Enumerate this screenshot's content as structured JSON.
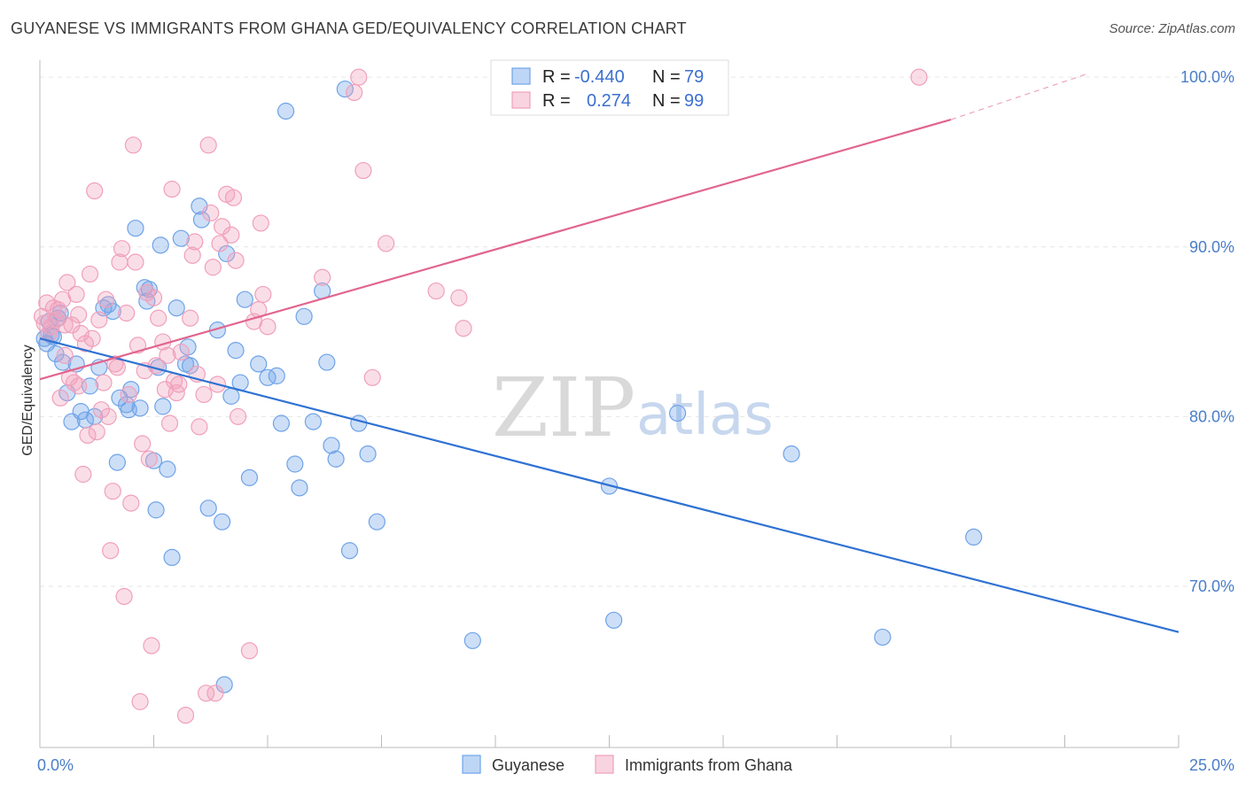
{
  "title": "GUYANESE VS IMMIGRANTS FROM GHANA GED/EQUIVALENCY CORRELATION CHART",
  "source": "Source: ZipAtlas.com",
  "watermark": {
    "zip": "ZIP",
    "atlas": "atlas"
  },
  "chart_data": {
    "type": "scatter",
    "ylabel": "GED/Equivalency",
    "xlim": [
      0,
      25
    ],
    "ylim": [
      60.5,
      101
    ],
    "x_tick_labels": {
      "min": "0.0%",
      "max": "25.0%"
    },
    "y_ticks": [
      {
        "value": 100,
        "label": "100.0%"
      },
      {
        "value": 90,
        "label": "90.0%"
      },
      {
        "value": 80,
        "label": "80.0%"
      },
      {
        "value": 70,
        "label": "70.0%"
      }
    ],
    "grid": true,
    "legend_position": "top-center",
    "legend": [
      {
        "r_label": "R = ",
        "r_value": "-0.440",
        "n_label": "N = ",
        "n_value": "79"
      },
      {
        "r_label": "R = ",
        "r_value": "0.274",
        "n_label": "N = ",
        "n_value": "99"
      }
    ],
    "series": [
      {
        "name": "Guyanese",
        "color": "#6fa3e8",
        "line_color": "#2f72d3",
        "trend": {
          "x0": 0,
          "y0": 84.6,
          "x1": 25,
          "y1": 67.3
        },
        "points": [
          [
            0.1,
            84.6
          ],
          [
            0.15,
            84.3
          ],
          [
            0.2,
            85.6
          ],
          [
            0.3,
            84.7
          ],
          [
            0.4,
            85.8
          ],
          [
            0.45,
            86.1
          ],
          [
            0.5,
            83.2
          ],
          [
            0.6,
            81.4
          ],
          [
            0.7,
            79.7
          ],
          [
            0.8,
            83.1
          ],
          [
            0.9,
            80.3
          ],
          [
            1.0,
            79.8
          ],
          [
            1.1,
            81.8
          ],
          [
            1.2,
            80.0
          ],
          [
            1.3,
            82.9
          ],
          [
            1.4,
            86.4
          ],
          [
            1.5,
            86.6
          ],
          [
            1.6,
            86.2
          ],
          [
            1.7,
            77.3
          ],
          [
            1.75,
            81.1
          ],
          [
            1.9,
            80.7
          ],
          [
            1.95,
            80.4
          ],
          [
            2.0,
            81.6
          ],
          [
            2.1,
            91.1
          ],
          [
            2.2,
            80.5
          ],
          [
            2.3,
            87.6
          ],
          [
            2.35,
            86.8
          ],
          [
            2.4,
            87.5
          ],
          [
            2.5,
            77.4
          ],
          [
            2.55,
            74.5
          ],
          [
            2.6,
            82.9
          ],
          [
            2.65,
            90.1
          ],
          [
            2.7,
            80.6
          ],
          [
            2.8,
            76.9
          ],
          [
            2.9,
            71.7
          ],
          [
            3.0,
            86.4
          ],
          [
            3.1,
            90.5
          ],
          [
            3.2,
            83.1
          ],
          [
            3.25,
            84.1
          ],
          [
            3.3,
            83.0
          ],
          [
            3.5,
            92.4
          ],
          [
            3.55,
            91.6
          ],
          [
            3.7,
            74.6
          ],
          [
            3.9,
            85.1
          ],
          [
            4.0,
            73.8
          ],
          [
            4.05,
            64.2
          ],
          [
            4.1,
            89.6
          ],
          [
            4.2,
            81.2
          ],
          [
            4.3,
            83.9
          ],
          [
            4.4,
            82.0
          ],
          [
            4.5,
            86.9
          ],
          [
            4.6,
            76.4
          ],
          [
            4.8,
            83.1
          ],
          [
            5.0,
            82.3
          ],
          [
            5.2,
            82.4
          ],
          [
            5.3,
            79.6
          ],
          [
            5.4,
            98.0
          ],
          [
            5.6,
            77.2
          ],
          [
            5.7,
            75.8
          ],
          [
            5.8,
            85.9
          ],
          [
            6.0,
            79.7
          ],
          [
            6.2,
            87.4
          ],
          [
            6.3,
            83.2
          ],
          [
            6.4,
            78.3
          ],
          [
            6.5,
            77.5
          ],
          [
            6.7,
            99.3
          ],
          [
            6.8,
            72.1
          ],
          [
            7.0,
            79.6
          ],
          [
            7.2,
            77.8
          ],
          [
            7.4,
            73.8
          ],
          [
            9.5,
            66.8
          ],
          [
            12.5,
            75.9
          ],
          [
            12.6,
            68.0
          ],
          [
            14.0,
            80.2
          ],
          [
            16.5,
            77.8
          ],
          [
            18.5,
            67.0
          ],
          [
            20.5,
            72.9
          ],
          [
            0.25,
            84.8
          ],
          [
            0.35,
            83.7
          ]
        ]
      },
      {
        "name": "Immigrants from Ghana",
        "color": "#f0a0bb",
        "line_color": "#e1658e",
        "trend": {
          "x0": 0,
          "y0": 82.2,
          "x1": 20,
          "y1": 97.5
        },
        "trend_dashed": {
          "x0": 20,
          "y0": 97.5,
          "x1": 23,
          "y1": 100.2
        },
        "points": [
          [
            0.05,
            85.9
          ],
          [
            0.1,
            85.5
          ],
          [
            0.15,
            86.7
          ],
          [
            0.2,
            84.9
          ],
          [
            0.3,
            86.4
          ],
          [
            0.35,
            85.7
          ],
          [
            0.4,
            86.3
          ],
          [
            0.45,
            81.1
          ],
          [
            0.5,
            86.9
          ],
          [
            0.55,
            83.6
          ],
          [
            0.6,
            87.9
          ],
          [
            0.65,
            82.3
          ],
          [
            0.7,
            85.4
          ],
          [
            0.8,
            87.2
          ],
          [
            0.85,
            86.0
          ],
          [
            0.9,
            84.9
          ],
          [
            0.95,
            76.6
          ],
          [
            1.0,
            84.3
          ],
          [
            1.05,
            78.9
          ],
          [
            1.1,
            88.4
          ],
          [
            1.15,
            84.6
          ],
          [
            1.2,
            93.3
          ],
          [
            1.25,
            79.1
          ],
          [
            1.3,
            85.7
          ],
          [
            1.4,
            82.0
          ],
          [
            1.45,
            86.9
          ],
          [
            1.5,
            80.0
          ],
          [
            1.55,
            72.1
          ],
          [
            1.6,
            75.6
          ],
          [
            1.65,
            83.1
          ],
          [
            1.7,
            82.9
          ],
          [
            1.75,
            89.1
          ],
          [
            1.8,
            89.9
          ],
          [
            1.85,
            69.4
          ],
          [
            1.9,
            86.1
          ],
          [
            2.0,
            74.9
          ],
          [
            2.05,
            96.0
          ],
          [
            2.1,
            89.1
          ],
          [
            2.15,
            84.2
          ],
          [
            2.2,
            63.2
          ],
          [
            2.25,
            78.4
          ],
          [
            2.3,
            82.7
          ],
          [
            2.35,
            87.3
          ],
          [
            2.4,
            77.5
          ],
          [
            2.45,
            66.5
          ],
          [
            2.5,
            87.0
          ],
          [
            2.6,
            85.8
          ],
          [
            2.7,
            84.4
          ],
          [
            2.8,
            83.6
          ],
          [
            2.85,
            79.6
          ],
          [
            2.9,
            93.4
          ],
          [
            2.95,
            82.1
          ],
          [
            3.0,
            81.4
          ],
          [
            3.1,
            83.8
          ],
          [
            3.2,
            62.4
          ],
          [
            3.3,
            85.8
          ],
          [
            3.35,
            89.5
          ],
          [
            3.4,
            90.3
          ],
          [
            3.5,
            79.4
          ],
          [
            3.6,
            81.3
          ],
          [
            3.65,
            63.7
          ],
          [
            3.7,
            96.0
          ],
          [
            3.75,
            92.0
          ],
          [
            3.8,
            88.8
          ],
          [
            3.85,
            63.7
          ],
          [
            3.9,
            81.9
          ],
          [
            3.95,
            90.2
          ],
          [
            4.0,
            91.2
          ],
          [
            4.1,
            93.1
          ],
          [
            4.2,
            90.7
          ],
          [
            4.25,
            92.9
          ],
          [
            4.3,
            89.2
          ],
          [
            4.35,
            80.0
          ],
          [
            4.6,
            66.2
          ],
          [
            4.7,
            85.6
          ],
          [
            4.8,
            86.3
          ],
          [
            4.85,
            91.4
          ],
          [
            4.9,
            87.2
          ],
          [
            5.0,
            85.3
          ],
          [
            6.2,
            88.2
          ],
          [
            6.9,
            99.1
          ],
          [
            7.0,
            100.0
          ],
          [
            7.1,
            94.5
          ],
          [
            7.3,
            82.3
          ],
          [
            7.6,
            90.2
          ],
          [
            8.7,
            87.4
          ],
          [
            9.2,
            87.0
          ],
          [
            9.3,
            85.2
          ],
          [
            19.3,
            100.0
          ],
          [
            0.25,
            85.3
          ],
          [
            0.75,
            82.0
          ],
          [
            1.35,
            80.4
          ],
          [
            2.55,
            83.0
          ],
          [
            3.05,
            81.9
          ],
          [
            3.45,
            82.5
          ],
          [
            1.95,
            81.3
          ],
          [
            0.55,
            85.4
          ],
          [
            0.85,
            81.8
          ],
          [
            2.75,
            81.6
          ]
        ]
      }
    ]
  }
}
